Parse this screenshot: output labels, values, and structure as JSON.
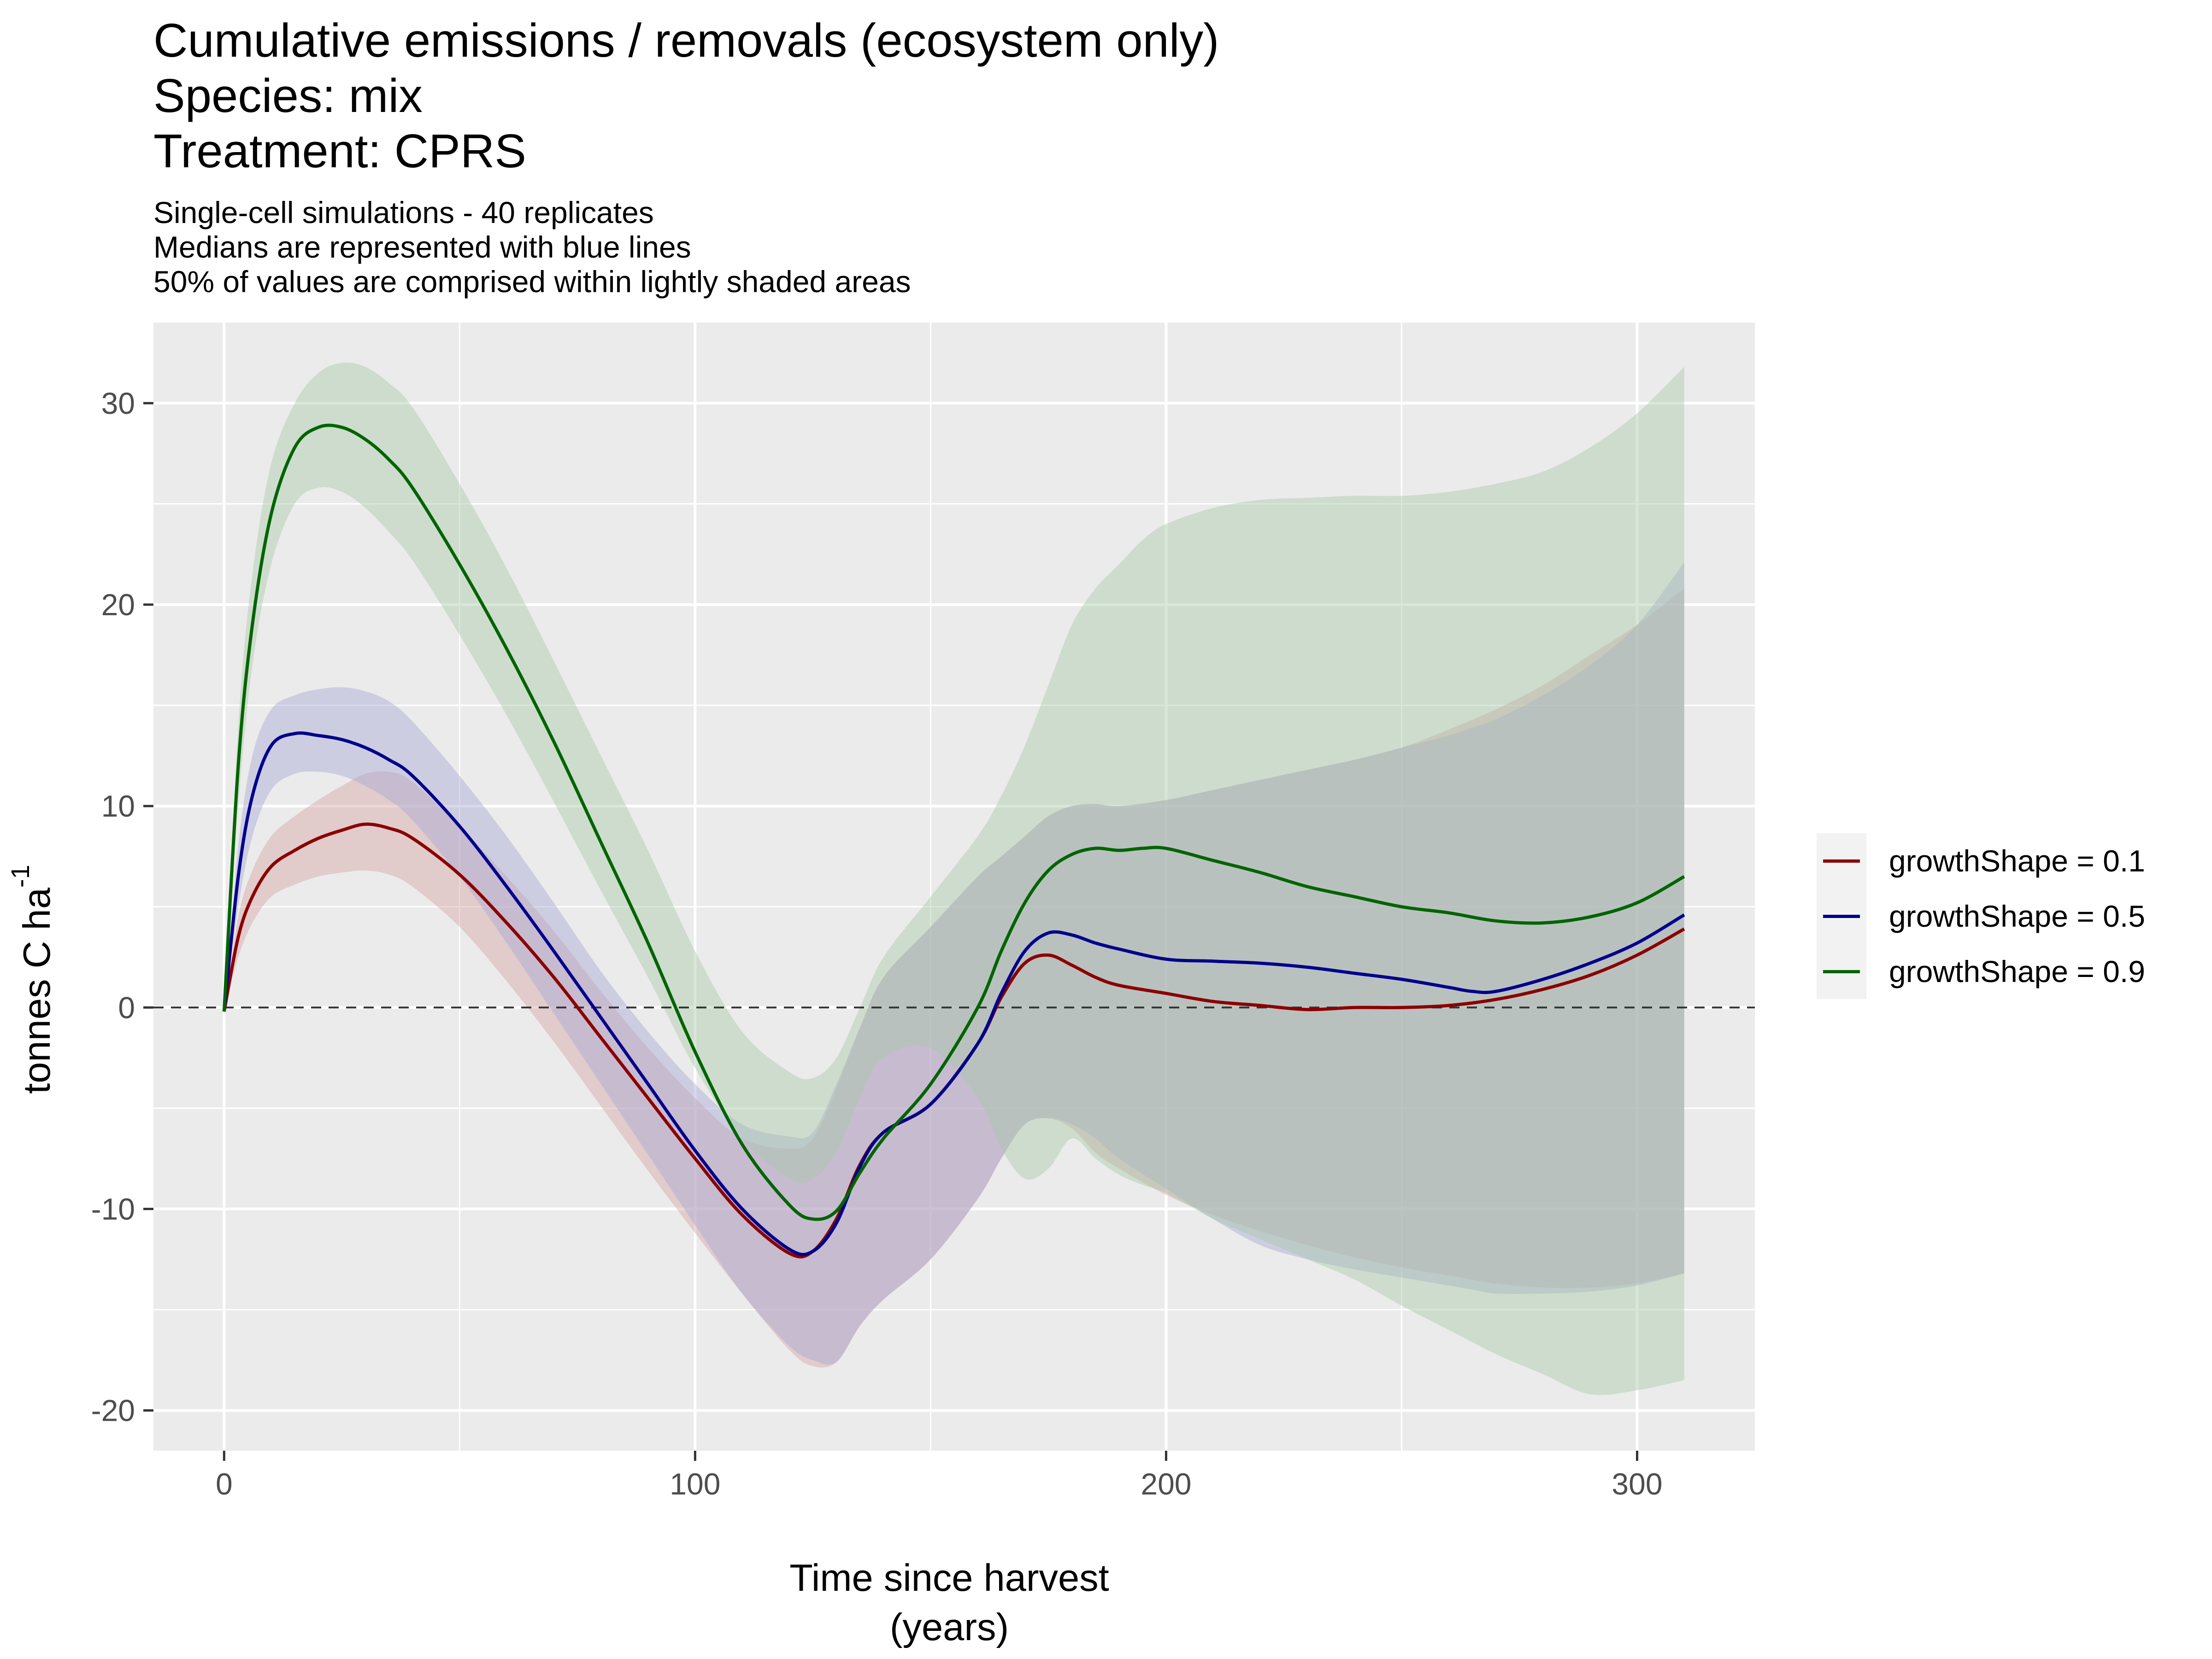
{
  "title": {
    "line1": "Cumulative emissions / removals (ecosystem only)",
    "line2": "Species: mix",
    "line3": "Treatment: CPRS"
  },
  "subtitle": {
    "line1": "Single-cell simulations - 40 replicates",
    "line2": "Medians are represented with blue lines",
    "line3": "50% of values are comprised within lightly shaded areas"
  },
  "chart_data": {
    "type": "line",
    "xlabel_line1": "Time since harvest",
    "xlabel_line2": "(years)",
    "ylabel": "tonnes C ha",
    "ylabel_superscript": "-1",
    "xlim": [
      -15,
      325
    ],
    "ylim": [
      -22,
      34
    ],
    "x_ticks": [
      0,
      100,
      200,
      300
    ],
    "y_ticks": [
      -20,
      -10,
      0,
      10,
      20,
      30
    ],
    "x_tick_labels": [
      "0",
      "100",
      "200",
      "300"
    ],
    "y_tick_labels": [
      "-20",
      "-10",
      "0",
      "10",
      "20",
      "30"
    ],
    "grid": true,
    "reference_line": {
      "y": 0,
      "style": "dashed",
      "color": "#333333"
    },
    "legend_position": "right",
    "series": [
      {
        "name": "growthShape = 0.1",
        "color": "#8b0000",
        "ribbon_color": "#d4a5a5",
        "x": [
          0,
          3,
          6,
          10,
          15,
          20,
          25,
          30,
          35,
          40,
          50,
          60,
          70,
          80,
          90,
          100,
          110,
          120,
          125,
          130,
          135,
          140,
          150,
          160,
          165,
          170,
          175,
          180,
          185,
          190,
          200,
          210,
          220,
          230,
          240,
          250,
          260,
          270,
          280,
          290,
          300,
          310
        ],
        "median": [
          -0.2,
          3.5,
          5.5,
          7.0,
          7.8,
          8.4,
          8.8,
          9.1,
          8.9,
          8.4,
          6.6,
          4.2,
          1.5,
          -1.5,
          -4.5,
          -7.5,
          -10.3,
          -12.2,
          -12.1,
          -10.5,
          -7.8,
          -6.2,
          -4.8,
          -1.8,
          0.5,
          2.2,
          2.6,
          2.1,
          1.5,
          1.1,
          0.7,
          0.3,
          0.1,
          -0.1,
          0.0,
          0.0,
          0.1,
          0.4,
          0.9,
          1.6,
          2.6,
          3.9
        ],
        "q25": [
          -0.2,
          2.5,
          4.2,
          5.5,
          6.1,
          6.5,
          6.7,
          6.8,
          6.6,
          6.0,
          4.0,
          1.3,
          -1.7,
          -4.9,
          -8.1,
          -11.2,
          -14.2,
          -17.0,
          -17.8,
          -17.6,
          -15.8,
          -14.5,
          -12.5,
          -9.5,
          -7.5,
          -5.8,
          -5.5,
          -6.0,
          -7.2,
          -8.0,
          -9.3,
          -10.3,
          -11.1,
          -11.8,
          -12.4,
          -12.9,
          -13.3,
          -13.7,
          -13.9,
          -13.9,
          -13.7,
          -13.2
        ],
        "q75": [
          -0.2,
          4.5,
          6.8,
          8.5,
          9.5,
          10.3,
          11.0,
          11.6,
          11.7,
          11.2,
          9.0,
          6.5,
          3.8,
          0.8,
          -2.0,
          -4.5,
          -6.5,
          -7.0,
          -6.5,
          -4.0,
          -1.0,
          1.5,
          4.0,
          6.5,
          7.5,
          8.5,
          9.5,
          10.0,
          10.1,
          10.0,
          10.3,
          10.8,
          11.3,
          11.8,
          12.3,
          12.9,
          13.8,
          14.8,
          16.0,
          17.5,
          19.0,
          20.8
        ]
      },
      {
        "name": "growthShape = 0.5",
        "color": "#00008b",
        "ribbon_color": "#a9a9d4",
        "x": [
          0,
          3,
          6,
          10,
          15,
          20,
          25,
          30,
          35,
          40,
          50,
          60,
          70,
          80,
          90,
          100,
          110,
          120,
          125,
          130,
          135,
          140,
          150,
          160,
          165,
          170,
          175,
          180,
          185,
          190,
          200,
          210,
          220,
          230,
          240,
          250,
          260,
          265,
          270,
          280,
          290,
          300,
          310
        ],
        "median": [
          -0.2,
          6.5,
          10.5,
          13.0,
          13.6,
          13.5,
          13.3,
          12.9,
          12.3,
          11.5,
          9.0,
          6.0,
          2.8,
          -0.5,
          -3.8,
          -7.1,
          -10.0,
          -12.0,
          -12.1,
          -10.7,
          -7.9,
          -6.2,
          -4.8,
          -1.8,
          0.7,
          2.8,
          3.7,
          3.6,
          3.2,
          2.9,
          2.4,
          2.3,
          2.2,
          2.0,
          1.7,
          1.4,
          1.0,
          0.8,
          0.8,
          1.4,
          2.2,
          3.2,
          4.6
        ],
        "q25": [
          -0.2,
          5.0,
          8.5,
          10.8,
          11.6,
          11.7,
          11.5,
          11.0,
          10.3,
          9.3,
          6.5,
          3.2,
          -0.3,
          -3.8,
          -7.3,
          -10.8,
          -14.2,
          -16.8,
          -17.5,
          -17.6,
          -15.8,
          -14.5,
          -12.5,
          -9.5,
          -7.5,
          -5.8,
          -5.5,
          -5.8,
          -6.5,
          -7.5,
          -9.0,
          -10.5,
          -11.8,
          -12.5,
          -13.0,
          -13.4,
          -13.8,
          -14.0,
          -14.2,
          -14.2,
          -14.1,
          -13.8,
          -13.2
        ],
        "q75": [
          -0.2,
          8.0,
          12.5,
          14.8,
          15.5,
          15.8,
          15.9,
          15.7,
          15.2,
          14.2,
          11.5,
          8.5,
          5.2,
          1.8,
          -1.2,
          -3.8,
          -5.8,
          -6.4,
          -6.2,
          -3.8,
          -1.0,
          1.5,
          4.0,
          6.5,
          7.5,
          8.5,
          9.5,
          10.0,
          10.1,
          10.0,
          10.3,
          10.8,
          11.3,
          11.8,
          12.3,
          12.9,
          13.5,
          13.9,
          14.3,
          15.5,
          17.0,
          19.0,
          22.1
        ]
      },
      {
        "name": "growthShape = 0.9",
        "color": "#006400",
        "ribbon_color": "#a9c9a9",
        "x": [
          0,
          3,
          6,
          10,
          15,
          20,
          25,
          30,
          35,
          40,
          50,
          60,
          70,
          80,
          90,
          100,
          110,
          120,
          125,
          130,
          135,
          140,
          150,
          160,
          165,
          170,
          175,
          180,
          185,
          190,
          195,
          200,
          210,
          220,
          230,
          240,
          250,
          260,
          270,
          280,
          290,
          300,
          310
        ],
        "median": [
          -0.2,
          12.0,
          19.0,
          24.5,
          27.8,
          28.8,
          28.8,
          28.2,
          27.2,
          25.8,
          22.0,
          17.8,
          13.2,
          8.2,
          3.2,
          -2.2,
          -6.8,
          -9.8,
          -10.5,
          -10.1,
          -8.2,
          -6.5,
          -3.8,
          0.0,
          2.8,
          5.2,
          6.8,
          7.6,
          7.9,
          7.8,
          7.9,
          7.9,
          7.3,
          6.7,
          6.0,
          5.5,
          5.0,
          4.7,
          4.3,
          4.2,
          4.5,
          5.2,
          6.5
        ],
        "q25": [
          -0.2,
          10.0,
          17.0,
          22.0,
          25.0,
          25.8,
          25.6,
          24.8,
          23.6,
          22.2,
          18.5,
          14.5,
          10.2,
          5.8,
          1.5,
          -3.0,
          -6.5,
          -8.5,
          -8.5,
          -7.2,
          -4.5,
          -2.5,
          -2.0,
          -4.5,
          -7.0,
          -8.5,
          -8.0,
          -6.5,
          -7.5,
          -8.3,
          -8.8,
          -9.2,
          -10.5,
          -11.5,
          -12.5,
          -13.5,
          -14.8,
          -16.0,
          -17.2,
          -18.2,
          -19.2,
          -19.0,
          -18.5
        ],
        "q75": [
          -0.2,
          14.0,
          21.5,
          27.0,
          30.0,
          31.5,
          32.0,
          31.8,
          31.0,
          29.8,
          26.0,
          21.8,
          17.2,
          12.5,
          7.8,
          2.8,
          -1.2,
          -3.2,
          -3.5,
          -2.5,
          0.0,
          2.5,
          5.5,
          8.5,
          10.5,
          13.0,
          16.0,
          19.0,
          20.8,
          22.0,
          23.2,
          24.0,
          24.8,
          25.2,
          25.3,
          25.4,
          25.4,
          25.6,
          26.0,
          26.6,
          27.8,
          29.5,
          31.8
        ]
      }
    ]
  },
  "legend": {
    "items": [
      "growthShape = 0.1",
      "growthShape = 0.5",
      "growthShape = 0.9"
    ]
  }
}
